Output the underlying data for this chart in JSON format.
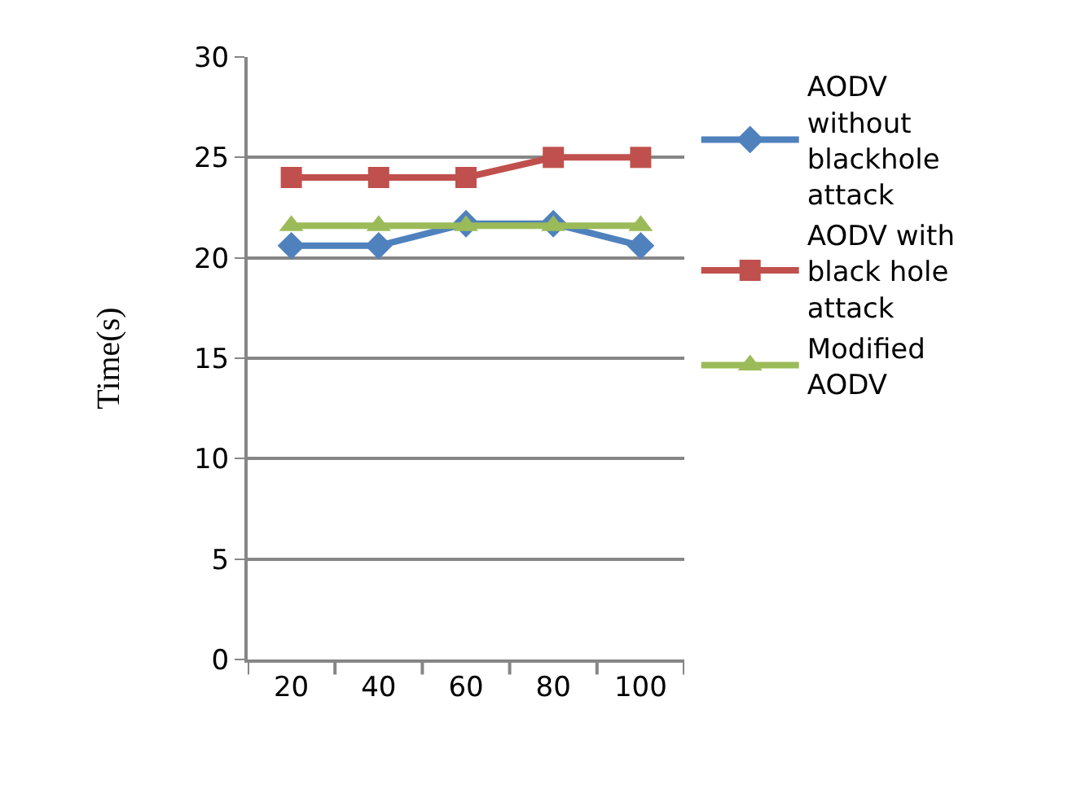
{
  "chart_data": {
    "type": "line",
    "ylabel": "Time(s)",
    "categories": [
      "20",
      "40",
      "60",
      "80",
      "100"
    ],
    "series": [
      {
        "name": "AODV without blackhole attack",
        "color": "#4f81bd",
        "marker": "diamond",
        "values": [
          20.6,
          20.6,
          21.7,
          21.7,
          20.6
        ]
      },
      {
        "name": "AODV with black hole attack",
        "color": "#c0504d",
        "marker": "square",
        "values": [
          24,
          24,
          24,
          25,
          25
        ]
      },
      {
        "name": "Modified AODV",
        "color": "#9bbb59",
        "marker": "triangle",
        "values": [
          21.6,
          21.6,
          21.6,
          21.6,
          21.6
        ]
      }
    ],
    "ylim": [
      0,
      30
    ],
    "yticks": [
      0,
      5,
      10,
      15,
      20,
      25,
      30
    ],
    "grid": "y",
    "legend": "right"
  }
}
